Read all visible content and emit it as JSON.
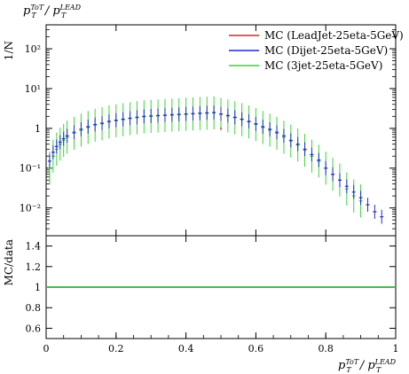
{
  "chart_data": [
    {
      "type": "line",
      "title": "p_T^ToT / p_T^LEAD",
      "title_parts": {
        "base": "p",
        "sup": "ToT",
        "sub": "T",
        "mid": " / p",
        "sup2": "LEAD",
        "sub2": "T"
      },
      "ylabel": "1/N",
      "yscale": "log",
      "xlim": [
        0,
        1
      ],
      "ylim": [
        0.002,
        400
      ],
      "ytick_labels": [
        "10⁻²",
        "10⁻¹",
        "1",
        "10¹",
        "10²"
      ],
      "ytick_values": [
        0.01,
        0.1,
        1,
        10,
        100
      ],
      "legend_position": "top-right",
      "grid": false,
      "series": [
        {
          "name": "MC (LeadJet-25eta-5GeV)",
          "color": "#d62728",
          "x": [
            0.5
          ],
          "values": [
            1.0
          ]
        },
        {
          "name": "MC (Dijet-25eta-5GeV)",
          "color": "#1f2ccf",
          "x": [
            0.01,
            0.02,
            0.03,
            0.04,
            0.05,
            0.06,
            0.08,
            0.1,
            0.12,
            0.14,
            0.16,
            0.18,
            0.2,
            0.22,
            0.24,
            0.26,
            0.28,
            0.3,
            0.32,
            0.34,
            0.36,
            0.38,
            0.4,
            0.42,
            0.44,
            0.46,
            0.48,
            0.5,
            0.52,
            0.54,
            0.56,
            0.58,
            0.6,
            0.62,
            0.64,
            0.66,
            0.68,
            0.7,
            0.72,
            0.74,
            0.76,
            0.78,
            0.8,
            0.82,
            0.84,
            0.86,
            0.88,
            0.9,
            0.92,
            0.94,
            0.96
          ],
          "values": [
            0.15,
            0.25,
            0.35,
            0.45,
            0.55,
            0.65,
            0.8,
            0.95,
            1.1,
            1.25,
            1.35,
            1.5,
            1.6,
            1.7,
            1.8,
            1.9,
            2.0,
            2.05,
            2.1,
            2.15,
            2.2,
            2.25,
            2.3,
            2.35,
            2.4,
            2.45,
            2.5,
            2.3,
            2.1,
            1.9,
            1.7,
            1.5,
            1.3,
            1.1,
            0.95,
            0.8,
            0.65,
            0.5,
            0.4,
            0.3,
            0.22,
            0.16,
            0.1,
            0.07,
            0.05,
            0.035,
            0.025,
            0.018,
            0.012,
            0.008,
            0.006
          ]
        },
        {
          "name": "MC (3jet-25eta-5GeV)",
          "color": "#39d639",
          "x": [
            0.01,
            0.02,
            0.03,
            0.04,
            0.05,
            0.06,
            0.08,
            0.1,
            0.12,
            0.14,
            0.16,
            0.18,
            0.2,
            0.22,
            0.24,
            0.26,
            0.28,
            0.3,
            0.32,
            0.34,
            0.36,
            0.38,
            0.4,
            0.42,
            0.44,
            0.46,
            0.48,
            0.5,
            0.52,
            0.54,
            0.56,
            0.58,
            0.6,
            0.62,
            0.64,
            0.66,
            0.68,
            0.7,
            0.72,
            0.74,
            0.76,
            0.78,
            0.8,
            0.82,
            0.84,
            0.86,
            0.88,
            0.9
          ],
          "values": [
            0.1,
            0.2,
            0.3,
            0.4,
            0.5,
            0.6,
            0.75,
            0.9,
            1.05,
            1.2,
            1.3,
            1.45,
            1.55,
            1.65,
            1.75,
            1.85,
            1.95,
            2.0,
            2.05,
            2.1,
            2.15,
            2.2,
            2.25,
            2.3,
            2.35,
            2.4,
            2.45,
            2.25,
            2.05,
            1.85,
            1.65,
            1.45,
            1.25,
            1.05,
            0.9,
            0.75,
            0.6,
            0.48,
            0.38,
            0.28,
            0.2,
            0.15,
            0.1,
            0.07,
            0.05,
            0.03,
            0.02,
            0.015
          ]
        }
      ]
    },
    {
      "type": "line",
      "ylabel": "MC/data",
      "xlabel": "p_T^ToT / p_T^LEAD",
      "xlabel_parts": {
        "base": "p",
        "sup": "ToT",
        "sub": "T",
        "mid": " / p",
        "sup2": "LEAD",
        "sub2": "T"
      },
      "xlim": [
        0,
        1
      ],
      "ylim": [
        0.5,
        1.5
      ],
      "xtick_labels": [
        "0",
        "0.2",
        "0.4",
        "0.6",
        "0.8",
        "1"
      ],
      "xtick_values": [
        0,
        0.2,
        0.4,
        0.6,
        0.8,
        1
      ],
      "ytick_labels": [
        "0.6",
        "0.8",
        "1",
        "1.2",
        "1.4"
      ],
      "ytick_values": [
        0.6,
        0.8,
        1.0,
        1.2,
        1.4
      ],
      "series": [
        {
          "name": "MC (LeadJet-25eta-5GeV)",
          "color": "#d62728",
          "x": [
            0,
            1
          ],
          "values": [
            1,
            1
          ]
        },
        {
          "name": "MC (Dijet-25eta-5GeV)",
          "color": "#1f2ccf",
          "x": [
            0,
            1
          ],
          "values": [
            1,
            1
          ]
        },
        {
          "name": "MC (3jet-25eta-5GeV)",
          "color": "#39d639",
          "x": [
            0,
            1
          ],
          "values": [
            1,
            1
          ]
        }
      ]
    }
  ]
}
